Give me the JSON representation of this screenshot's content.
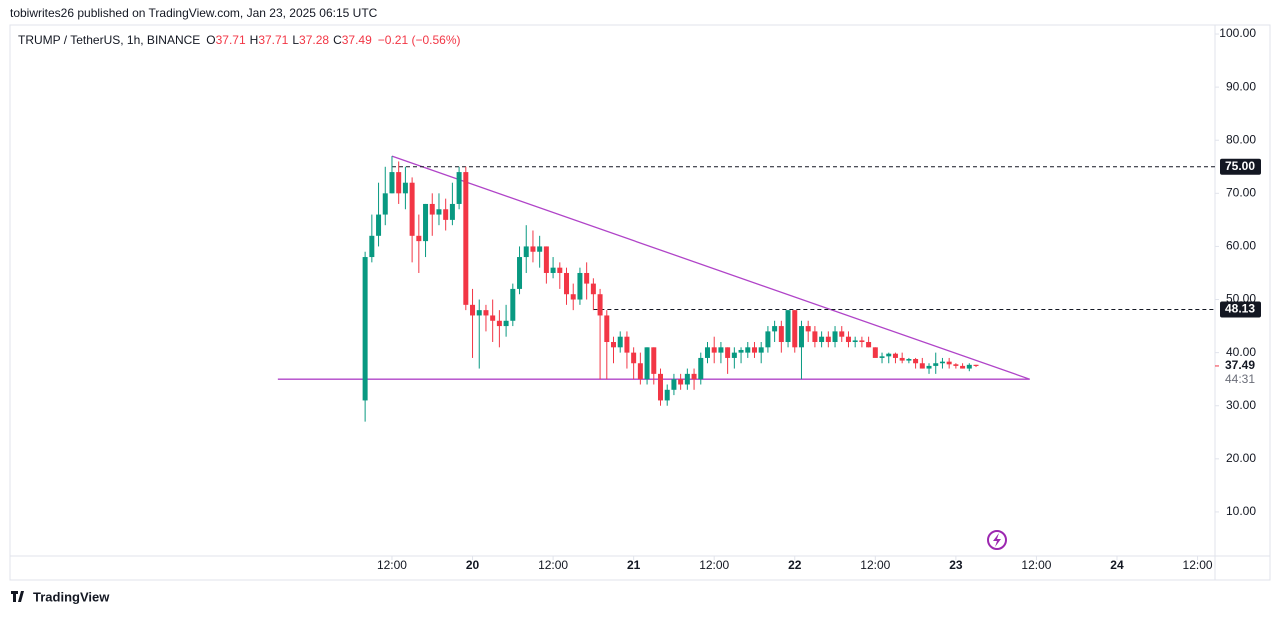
{
  "header": {
    "byline": "tobiwrites26 published on TradingView.com, Jan 23, 2025 06:15 UTC",
    "symbol": "TRUMP / TetherUS, 1h, BINANCE",
    "ohlc": [
      {
        "key": "O",
        "value": 37.71
      },
      {
        "key": "H",
        "value": 37.71
      },
      {
        "key": "L",
        "value": 37.28
      },
      {
        "key": "C",
        "value": 37.49
      }
    ],
    "change": "−0.21 (−0.56%)"
  },
  "footer": {
    "brand": "TradingView"
  },
  "chart_data": {
    "type": "candlestick",
    "up_color": "#089981",
    "down_color": "#f23645",
    "line_color": "#b044c8",
    "xlim": [
      -44.9,
      134.6
    ],
    "ylim": [
      1.7,
      101.7
    ],
    "xticks": [
      {
        "value": 12,
        "label": "12:00"
      },
      {
        "value": 24,
        "label": "20"
      },
      {
        "value": 36,
        "label": "12:00"
      },
      {
        "value": 48,
        "label": "21"
      },
      {
        "value": 60,
        "label": "12:00"
      },
      {
        "value": 72,
        "label": "22"
      },
      {
        "value": 84,
        "label": "12:00"
      },
      {
        "value": 96,
        "label": "23"
      },
      {
        "value": 108,
        "label": "12:00"
      },
      {
        "value": 120,
        "label": "24"
      },
      {
        "value": 132,
        "label": "12:00"
      }
    ],
    "yticks": [
      {
        "value": 10,
        "label": "10.00"
      },
      {
        "value": 20,
        "label": "20.00"
      },
      {
        "value": 30,
        "label": "30.00"
      },
      {
        "value": 40,
        "label": "40.00"
      },
      {
        "value": 50,
        "label": "50.00"
      },
      {
        "value": 60,
        "label": "60.00"
      },
      {
        "value": 70,
        "label": "70.00"
      },
      {
        "value": 80,
        "label": "80.00"
      },
      {
        "value": 90,
        "label": "90.00"
      },
      {
        "value": 100,
        "label": "100.00"
      }
    ],
    "x": [
      8,
      9,
      10,
      11,
      12,
      13,
      14,
      15,
      16,
      17,
      18,
      19,
      20,
      21,
      22,
      23,
      24,
      25,
      26,
      27,
      28,
      29,
      30,
      31,
      32,
      33,
      34,
      35,
      36,
      37,
      38,
      39,
      40,
      41,
      42,
      43,
      44,
      45,
      46,
      47,
      48,
      49,
      50,
      51,
      52,
      53,
      54,
      55,
      56,
      57,
      58,
      59,
      60,
      61,
      62,
      63,
      64,
      65,
      66,
      67,
      68,
      69,
      70,
      71,
      72,
      73,
      74,
      75,
      76,
      77,
      78,
      79,
      80,
      81,
      82,
      83,
      84,
      85,
      86,
      87,
      88,
      89,
      90,
      91,
      92,
      93,
      94,
      95,
      96,
      97,
      98,
      99
    ],
    "open": [
      31,
      58,
      62,
      66,
      70,
      74,
      70,
      72,
      62,
      61,
      68,
      66,
      67,
      65,
      68,
      74,
      49,
      47,
      48,
      47,
      46,
      45,
      46,
      52,
      58,
      60,
      59,
      60,
      55,
      56,
      55,
      51,
      50,
      55,
      53,
      51,
      47,
      42,
      41,
      43,
      40,
      38,
      35,
      41,
      36,
      31,
      33,
      35,
      34,
      36,
      35,
      39,
      41,
      40,
      41,
      39,
      40,
      40,
      41,
      40,
      41,
      44,
      45,
      42,
      48,
      41,
      45,
      44,
      42,
      43,
      42,
      44,
      43,
      42,
      42.3,
      42,
      41,
      39,
      39.3,
      39.8,
      39,
      38.5,
      38.8,
      38,
      37,
      37.5,
      38,
      38.3,
      37.8,
      37.5,
      37,
      37.71
    ],
    "high": [
      59,
      66,
      72,
      75,
      77,
      76,
      75,
      73,
      66,
      68,
      70,
      70,
      69,
      72,
      75,
      75,
      52,
      50,
      49,
      50,
      48,
      49,
      53,
      60,
      64,
      63,
      62,
      60,
      58,
      57,
      56,
      53,
      56,
      57,
      54,
      52,
      48,
      43,
      44,
      44,
      41,
      40,
      41,
      41,
      37,
      34,
      36,
      36,
      37,
      37,
      40,
      42,
      43,
      42,
      41,
      41,
      41,
      42,
      42,
      42,
      45,
      46,
      46,
      48,
      48,
      46,
      46,
      45,
      44,
      44,
      45,
      45,
      44,
      43,
      43,
      43,
      41,
      40,
      40,
      40,
      40,
      39,
      39,
      39,
      38,
      40,
      39,
      39,
      38,
      38,
      38,
      37.71
    ],
    "low": [
      27,
      57,
      60,
      64,
      70,
      68,
      67,
      57,
      55,
      58,
      62,
      64,
      63,
      64,
      67,
      48,
      39,
      37,
      44,
      42,
      41,
      43,
      45,
      51,
      55,
      57,
      56,
      53,
      54,
      52,
      49,
      48,
      49,
      50,
      48,
      35,
      35,
      38,
      40,
      37,
      35,
      34,
      34,
      34,
      30,
      30,
      32,
      33,
      33,
      33,
      34,
      38,
      38,
      38,
      36,
      37,
      38,
      39,
      39,
      38,
      40,
      42,
      40,
      41,
      40,
      35,
      42,
      41,
      41,
      41,
      41,
      42,
      41,
      41,
      41,
      41,
      40,
      38,
      38,
      38,
      38,
      38,
      37,
      37,
      36,
      36,
      37,
      37,
      37,
      37,
      36.5,
      37.28
    ],
    "close": [
      58,
      62,
      66,
      70,
      74,
      70,
      72,
      62,
      61,
      68,
      66,
      67,
      65,
      68,
      74,
      49,
      47,
      48,
      47,
      46,
      45,
      46,
      52,
      58,
      60,
      59,
      60,
      55,
      56,
      55,
      51,
      50,
      55,
      53,
      51,
      47,
      42,
      41,
      43,
      40,
      38,
      35,
      41,
      36,
      31,
      33,
      35,
      34,
      36,
      35,
      39,
      41,
      40,
      41,
      39,
      40,
      40.5,
      41,
      40,
      41,
      44,
      45,
      42,
      48,
      41,
      45,
      44,
      42,
      43,
      42,
      44,
      43,
      42,
      42.3,
      42,
      41,
      39,
      39.3,
      39.8,
      39,
      38.5,
      38.8,
      38,
      37,
      37.5,
      38,
      38.3,
      37.8,
      37.5,
      37,
      37.7,
      37.49
    ],
    "levels": [
      {
        "value": 75,
        "label": "75.00",
        "x_start": 12
      },
      {
        "value": 48.13,
        "label": "48.13",
        "x_start": 42
      }
    ],
    "trendlines": [
      {
        "x": [
          12,
          107
        ],
        "y": [
          77,
          35
        ]
      },
      {
        "x": [
          -5,
          107
        ],
        "y": [
          35,
          35
        ]
      }
    ],
    "last_price": {
      "value": 37.49,
      "label": "37.49"
    },
    "countdown": "44:31"
  }
}
